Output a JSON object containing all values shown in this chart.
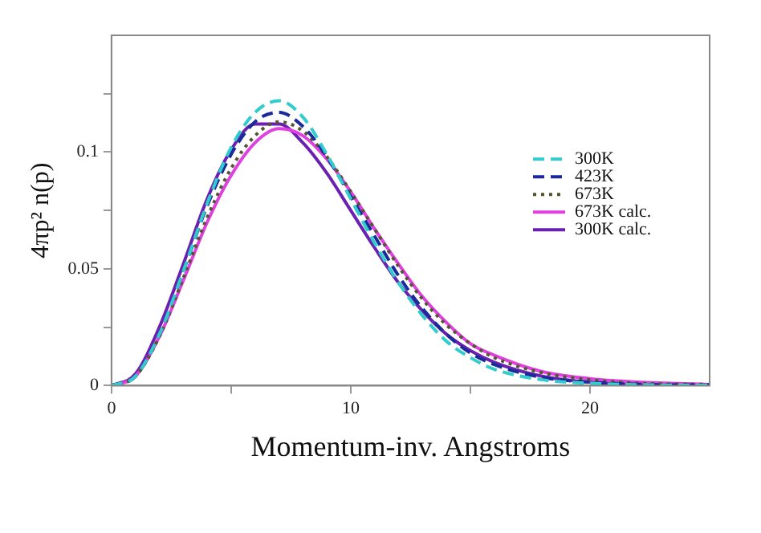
{
  "chart_data": {
    "type": "line",
    "xlabel": "Momentum-inv. Angstroms",
    "ylabel": "4πp² n(p)",
    "x": [
      0,
      1,
      2,
      3,
      4,
      5,
      6,
      7,
      8,
      9,
      10,
      11,
      12,
      13,
      14,
      15,
      16,
      18,
      20,
      22,
      25
    ],
    "xlim": [
      0,
      25
    ],
    "xticks": [
      0,
      {
        "value": 5,
        "label": null
      },
      10,
      {
        "value": 15,
        "label": null
      },
      20
    ],
    "ylim": [
      0,
      0.15
    ],
    "yticks": [
      0,
      {
        "value": 0.025,
        "label": null
      },
      0.05,
      {
        "value": 0.075,
        "label": null
      },
      0.1,
      {
        "value": 0.125,
        "label": null
      }
    ],
    "grid": false,
    "legend": "right",
    "marker": "none",
    "series": [
      {
        "name": "300K",
        "color": "#33cccc",
        "line_style": "dashed",
        "values": [
          0,
          0.004,
          0.022,
          0.049,
          0.078,
          0.102,
          0.117,
          0.122,
          0.115,
          0.099,
          0.08,
          0.061,
          0.044,
          0.03,
          0.019,
          0.012,
          0.007,
          0.0025,
          0.001,
          0.0004,
          0.0001
        ]
      },
      {
        "name": "423K",
        "color": "#1a2a9a",
        "line_style": "dashed",
        "values": [
          0,
          0.004,
          0.022,
          0.049,
          0.077,
          0.099,
          0.113,
          0.117,
          0.111,
          0.098,
          0.081,
          0.064,
          0.047,
          0.033,
          0.022,
          0.014,
          0.009,
          0.0035,
          0.0015,
          0.0006,
          0.0002
        ]
      },
      {
        "name": "673K",
        "color": "#555533",
        "line_style": "dotted",
        "values": [
          0,
          0.004,
          0.021,
          0.046,
          0.072,
          0.093,
          0.107,
          0.113,
          0.109,
          0.098,
          0.083,
          0.067,
          0.051,
          0.037,
          0.026,
          0.018,
          0.012,
          0.0055,
          0.0025,
          0.001,
          0.0005
        ]
      },
      {
        "name": "673K calc.",
        "color": "#e040e0",
        "line_style": "solid",
        "values": [
          0,
          0.004,
          0.021,
          0.045,
          0.07,
          0.09,
          0.104,
          0.11,
          0.107,
          0.097,
          0.083,
          0.067,
          0.052,
          0.038,
          0.027,
          0.018,
          0.013,
          0.006,
          0.003,
          0.0015,
          0.0005
        ]
      },
      {
        "name": "300K calc.",
        "color": "#6a20b0",
        "line_style": "solid",
        "values": [
          0,
          0.005,
          0.025,
          0.052,
          0.08,
          0.101,
          0.112,
          0.112,
          0.104,
          0.091,
          0.075,
          0.059,
          0.044,
          0.032,
          0.022,
          0.015,
          0.01,
          0.004,
          0.0015,
          0.0008,
          0.0003
        ]
      }
    ]
  }
}
